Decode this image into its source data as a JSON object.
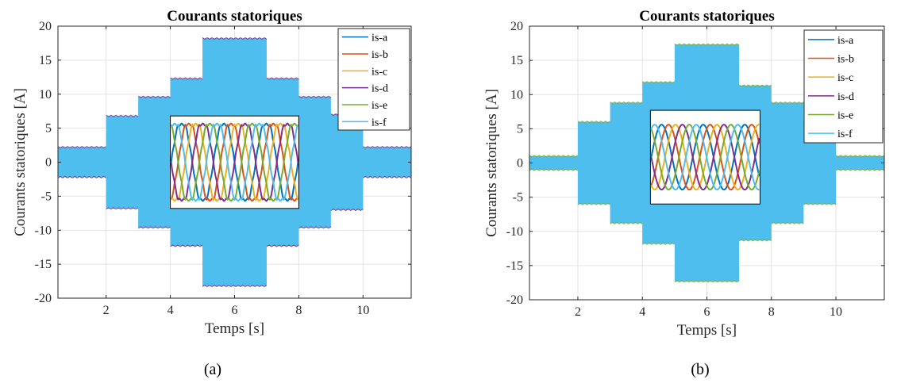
{
  "chart_data": [
    {
      "id": "a",
      "type": "line",
      "title": "Courants statoriques",
      "xlabel": "Temps [s]",
      "ylabel": "Courants statoriques [A]",
      "xlim": [
        0.5,
        11.5
      ],
      "ylim": [
        -20,
        20
      ],
      "xticks": [
        2,
        4,
        6,
        8,
        10
      ],
      "yticks": [
        -20,
        -15,
        -10,
        -5,
        0,
        5,
        10,
        15,
        20
      ],
      "grid": true,
      "legend_position": "top-right",
      "series_names": [
        "is-a",
        "is-b",
        "is-c",
        "is-d",
        "is-e",
        "is-f"
      ],
      "amplitude_profile": {
        "time_breaks": [
          0.5,
          2,
          3,
          4,
          5,
          7,
          8,
          9,
          10,
          11.5
        ],
        "amplitudes": [
          2.2,
          6.8,
          9.6,
          12.3,
          18.2,
          12.3,
          9.6,
          7.0,
          2.2
        ]
      },
      "inset": {
        "x_range": [
          4.0,
          8.0
        ],
        "y_range": [
          -6.8,
          6.8
        ],
        "waveform_amplitude": 6.0,
        "cycles": 3,
        "note_shape": "trapezoidal"
      },
      "caption": "(a)"
    },
    {
      "id": "b",
      "type": "line",
      "title": "Courants statoriques",
      "xlabel": "Temps [s]",
      "ylabel": "Courants statoriques [A]",
      "xlim": [
        0.5,
        11.5
      ],
      "ylim": [
        -20,
        20
      ],
      "xticks": [
        2,
        4,
        6,
        8,
        10
      ],
      "yticks": [
        -20,
        -15,
        -10,
        -5,
        0,
        5,
        10,
        15,
        20
      ],
      "grid": true,
      "legend_position": "top-right",
      "series_names": [
        "is-a",
        "is-b",
        "is-c",
        "is-d",
        "is-e",
        "is-f"
      ],
      "amplitude_profile": {
        "time_breaks": [
          0.5,
          2,
          3,
          4,
          5,
          7,
          8,
          9,
          10,
          11.5
        ],
        "amplitudes": [
          1.0,
          6.0,
          8.8,
          11.8,
          17.3,
          11.3,
          8.8,
          6.0,
          1.0
        ]
      },
      "inset": {
        "x_range": [
          4.25,
          7.65
        ],
        "y_range": [
          -6.0,
          7.7
        ],
        "waveform_amplitude": 5.0,
        "cycles": 2.6,
        "note_shape": "sinusoidal"
      },
      "caption": "(b)"
    }
  ],
  "series_colors": [
    "#0072BD",
    "#D95319",
    "#EDB120",
    "#7E2F8E",
    "#77AC30",
    "#4DBEEE"
  ]
}
